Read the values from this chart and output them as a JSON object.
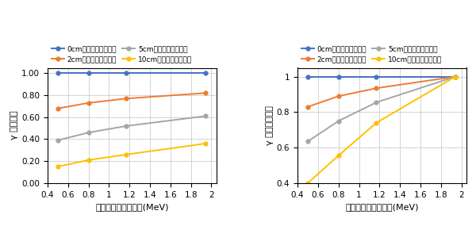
{
  "x": [
    0.5,
    0.8,
    1.17,
    1.94
  ],
  "left": {
    "ylabel": "γ 線透過率",
    "xlabel": "ガンマ線エネルギー(MeV)",
    "ylim": [
      0.0,
      1.05
    ],
    "yticks": [
      0.0,
      0.2,
      0.4,
      0.6,
      0.8,
      1.0
    ],
    "series": {
      "0cm厚を通過した場合": [
        1.0,
        1.0,
        1.0,
        1.0
      ],
      "2cm厚を通過した場合": [
        0.68,
        0.73,
        0.77,
        0.82
      ],
      "5cm厚を通過した場合": [
        0.39,
        0.46,
        0.52,
        0.61
      ],
      "10cm厚を通過した場合": [
        0.15,
        0.21,
        0.26,
        0.36
      ]
    }
  },
  "right": {
    "ylabel": "γ 線透過率の比",
    "xlabel": "ガンマ線エネルギー(MeV)",
    "ylim": [
      0.4,
      1.05
    ],
    "yticks": [
      0.4,
      0.6,
      0.8,
      1.0
    ],
    "series": {
      "0cm厚を通過した場合": [
        1.0,
        1.0,
        1.0,
        1.0
      ],
      "2cm厚を通過した場合": [
        0.83,
        0.89,
        0.935,
        1.0
      ],
      "5cm厚を通過した場合": [
        0.635,
        0.75,
        0.855,
        1.0
      ],
      "10cm厚を通過した場合": [
        0.4,
        0.555,
        0.74,
        1.0
      ]
    }
  },
  "colors": {
    "0cm厚を通過した場合": "#4472c4",
    "2cm厚を通過した場合": "#ed7d31",
    "5cm厚を通過した場合": "#a5a5a5",
    "10cm厚を通過した場合": "#ffc000"
  },
  "legend_labels": [
    "0cm厚を通過した場合",
    "2cm厚を通過した場合",
    "5cm厚を通過した場合",
    "10cm厚を通過した場合"
  ],
  "xlim": [
    0.4,
    2.05
  ],
  "xticks": [
    0.4,
    0.6,
    0.8,
    1.0,
    1.2,
    1.4,
    1.6,
    1.8,
    2.0
  ],
  "font_size_legend": 6.5,
  "font_size_label": 8,
  "font_size_tick": 7.5
}
